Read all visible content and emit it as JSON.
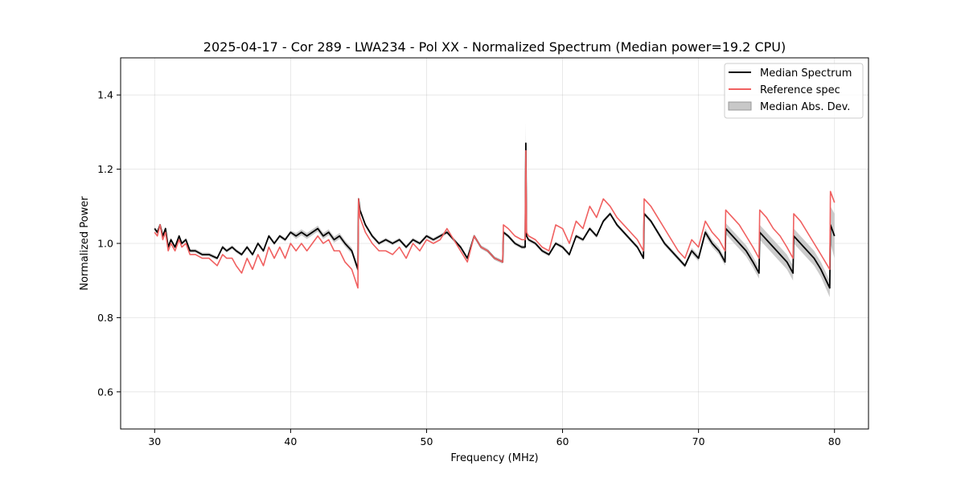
{
  "chart_data": {
    "type": "line",
    "title": "2025-04-17 - Cor 289 - LWA234 - Pol XX - Normalized Spectrum (Median power=19.2 CPU)",
    "xlabel": "Frequency (MHz)",
    "ylabel": "Normalized Power",
    "xlim": [
      27.5,
      82.5
    ],
    "ylim": [
      0.5,
      1.5
    ],
    "xticks": [
      30,
      40,
      50,
      60,
      70,
      80
    ],
    "yticks": [
      0.6,
      0.8,
      1.0,
      1.2,
      1.4
    ],
    "xtick_labels": [
      "30",
      "40",
      "50",
      "60",
      "70",
      "80"
    ],
    "ytick_labels": [
      "0.6",
      "0.8",
      "1.0",
      "1.2",
      "1.4"
    ],
    "grid": true,
    "legend_position": "top-right",
    "legend": {
      "median": "Median Spectrum",
      "reference": "Reference spec",
      "mad": "Median Abs. Dev."
    },
    "colors": {
      "median": "#000000",
      "reference": "#f06060",
      "mad": "#c8c8c8"
    },
    "series": [
      {
        "name": "Median Spectrum",
        "x": [
          30.0,
          30.2,
          30.4,
          30.6,
          30.8,
          31.0,
          31.2,
          31.5,
          31.8,
          32.0,
          32.3,
          32.6,
          33.0,
          33.5,
          34.0,
          34.6,
          35.0,
          35.3,
          35.7,
          36.0,
          36.4,
          36.8,
          37.2,
          37.6,
          38.0,
          38.4,
          38.8,
          39.2,
          39.6,
          40.0,
          40.4,
          40.8,
          41.2,
          41.6,
          42.0,
          42.4,
          42.8,
          43.2,
          43.6,
          44.0,
          44.5,
          44.95,
          45.0,
          45.1,
          45.5,
          46.0,
          46.5,
          47.0,
          47.5,
          48.0,
          48.5,
          49.0,
          49.5,
          50.0,
          50.5,
          51.0,
          51.5,
          52.0,
          52.5,
          53.0,
          53.5,
          54.0,
          54.5,
          55.0,
          55.6,
          55.65,
          56.0,
          56.5,
          57.0,
          57.25,
          57.3,
          57.35,
          57.5,
          58.0,
          58.5,
          59.0,
          59.5,
          60.0,
          60.5,
          61.0,
          61.5,
          62.0,
          62.5,
          63.0,
          63.5,
          64.0,
          64.5,
          65.0,
          65.5,
          65.95,
          66.0,
          66.5,
          67.0,
          67.5,
          68.0,
          68.5,
          69.0,
          69.5,
          70.0,
          70.5,
          71.0,
          71.5,
          71.95,
          72.0,
          72.5,
          73.0,
          73.5,
          74.0,
          74.45,
          74.5,
          75.0,
          75.5,
          76.0,
          76.5,
          76.95,
          77.0,
          77.5,
          78.0,
          78.5,
          79.0,
          79.65,
          79.7,
          80.0
        ],
        "y": [
          1.04,
          1.03,
          1.05,
          1.02,
          1.04,
          0.99,
          1.01,
          0.99,
          1.02,
          1.0,
          1.01,
          0.98,
          0.98,
          0.97,
          0.97,
          0.96,
          0.99,
          0.98,
          0.99,
          0.98,
          0.97,
          0.99,
          0.97,
          1.0,
          0.98,
          1.02,
          1.0,
          1.02,
          1.01,
          1.03,
          1.02,
          1.03,
          1.02,
          1.03,
          1.04,
          1.02,
          1.03,
          1.01,
          1.02,
          1.0,
          0.98,
          0.93,
          1.12,
          1.09,
          1.05,
          1.02,
          1.0,
          1.01,
          1.0,
          1.01,
          0.99,
          1.01,
          1.0,
          1.02,
          1.01,
          1.02,
          1.03,
          1.01,
          0.99,
          0.96,
          1.02,
          0.99,
          0.98,
          0.96,
          0.95,
          1.03,
          1.02,
          1.0,
          0.99,
          0.99,
          1.27,
          1.02,
          1.01,
          1.0,
          0.98,
          0.97,
          1.0,
          0.99,
          0.97,
          1.02,
          1.01,
          1.04,
          1.02,
          1.06,
          1.08,
          1.05,
          1.03,
          1.01,
          0.99,
          0.96,
          1.08,
          1.06,
          1.03,
          1.0,
          0.98,
          0.96,
          0.94,
          0.98,
          0.96,
          1.03,
          1.0,
          0.98,
          0.95,
          1.04,
          1.02,
          1.0,
          0.98,
          0.95,
          0.92,
          1.03,
          1.01,
          0.99,
          0.97,
          0.95,
          0.92,
          1.02,
          1.0,
          0.98,
          0.96,
          0.93,
          0.88,
          1.05,
          1.02
        ]
      },
      {
        "name": "Reference spec",
        "x": [
          30.0,
          30.2,
          30.4,
          30.6,
          30.8,
          31.0,
          31.2,
          31.5,
          31.8,
          32.0,
          32.3,
          32.6,
          33.0,
          33.5,
          34.0,
          34.6,
          35.0,
          35.3,
          35.7,
          36.0,
          36.4,
          36.8,
          37.2,
          37.6,
          38.0,
          38.4,
          38.8,
          39.2,
          39.6,
          40.0,
          40.4,
          40.8,
          41.2,
          41.6,
          42.0,
          42.4,
          42.8,
          43.2,
          43.6,
          44.0,
          44.5,
          44.95,
          45.0,
          45.1,
          45.5,
          46.0,
          46.5,
          47.0,
          47.5,
          48.0,
          48.5,
          49.0,
          49.5,
          50.0,
          50.5,
          51.0,
          51.5,
          52.0,
          52.5,
          53.0,
          53.5,
          54.0,
          54.5,
          55.0,
          55.6,
          55.65,
          56.0,
          56.5,
          57.0,
          57.25,
          57.3,
          57.35,
          57.5,
          58.0,
          58.5,
          59.0,
          59.5,
          60.0,
          60.5,
          61.0,
          61.5,
          62.0,
          62.5,
          63.0,
          63.5,
          64.0,
          64.5,
          65.0,
          65.5,
          65.95,
          66.0,
          66.5,
          67.0,
          67.5,
          68.0,
          68.5,
          69.0,
          69.5,
          70.0,
          70.5,
          71.0,
          71.5,
          71.95,
          72.0,
          72.5,
          73.0,
          73.5,
          74.0,
          74.45,
          74.5,
          75.0,
          75.5,
          76.0,
          76.5,
          76.95,
          77.0,
          77.5,
          78.0,
          78.5,
          79.0,
          79.65,
          79.7,
          80.0
        ],
        "y": [
          1.03,
          1.02,
          1.05,
          1.01,
          1.03,
          0.98,
          1.0,
          0.98,
          1.01,
          0.99,
          1.0,
          0.97,
          0.97,
          0.96,
          0.96,
          0.94,
          0.97,
          0.96,
          0.96,
          0.94,
          0.92,
          0.96,
          0.93,
          0.97,
          0.94,
          0.99,
          0.96,
          0.99,
          0.96,
          1.0,
          0.98,
          1.0,
          0.98,
          1.0,
          1.02,
          1.0,
          1.01,
          0.98,
          0.98,
          0.95,
          0.93,
          0.88,
          1.12,
          1.07,
          1.03,
          1.0,
          0.98,
          0.98,
          0.97,
          0.99,
          0.96,
          1.0,
          0.98,
          1.01,
          1.0,
          1.01,
          1.04,
          1.01,
          0.98,
          0.95,
          1.02,
          0.99,
          0.98,
          0.96,
          0.95,
          1.05,
          1.04,
          1.02,
          1.01,
          1.01,
          1.25,
          1.03,
          1.02,
          1.01,
          0.99,
          0.98,
          1.05,
          1.04,
          1.0,
          1.06,
          1.04,
          1.1,
          1.07,
          1.12,
          1.1,
          1.07,
          1.05,
          1.03,
          1.01,
          0.98,
          1.12,
          1.1,
          1.07,
          1.04,
          1.01,
          0.98,
          0.96,
          1.01,
          0.99,
          1.06,
          1.03,
          1.01,
          0.98,
          1.09,
          1.07,
          1.05,
          1.02,
          0.99,
          0.96,
          1.09,
          1.07,
          1.04,
          1.02,
          0.99,
          0.96,
          1.08,
          1.06,
          1.03,
          1.0,
          0.97,
          0.93,
          1.14,
          1.11
        ]
      },
      {
        "name": "Median Abs. Dev.",
        "x": [
          30.0,
          30.2,
          30.4,
          30.6,
          30.8,
          31.0,
          31.2,
          31.5,
          31.8,
          32.0,
          32.3,
          32.6,
          33.0,
          33.5,
          34.0,
          34.6,
          35.0,
          35.3,
          35.7,
          36.0,
          36.4,
          36.8,
          37.2,
          37.6,
          38.0,
          38.4,
          38.8,
          39.2,
          39.6,
          40.0,
          40.4,
          40.8,
          41.2,
          41.6,
          42.0,
          42.4,
          42.8,
          43.2,
          43.6,
          44.0,
          44.5,
          44.95,
          45.0,
          45.1,
          45.5,
          46.0,
          46.5,
          47.0,
          47.5,
          48.0,
          48.5,
          49.0,
          49.5,
          50.0,
          50.5,
          51.0,
          51.5,
          52.0,
          52.5,
          53.0,
          53.5,
          54.0,
          54.5,
          55.0,
          55.6,
          55.65,
          56.0,
          56.5,
          57.0,
          57.25,
          57.3,
          57.35,
          57.5,
          58.0,
          58.5,
          59.0,
          59.5,
          60.0,
          60.5,
          61.0,
          61.5,
          62.0,
          62.5,
          63.0,
          63.5,
          64.0,
          64.5,
          65.0,
          65.5,
          65.95,
          66.0,
          66.5,
          67.0,
          67.5,
          68.0,
          68.5,
          69.0,
          69.5,
          70.0,
          70.5,
          71.0,
          71.5,
          71.95,
          72.0,
          72.5,
          73.0,
          73.5,
          74.0,
          74.45,
          74.5,
          75.0,
          75.5,
          76.0,
          76.5,
          76.95,
          77.0,
          77.5,
          78.0,
          78.5,
          79.0,
          79.65,
          79.7,
          80.0
        ],
        "upper": [
          1.045,
          1.035,
          1.055,
          1.025,
          1.045,
          0.995,
          1.015,
          0.995,
          1.025,
          1.005,
          1.015,
          0.985,
          0.985,
          0.975,
          0.975,
          0.965,
          0.995,
          0.985,
          0.995,
          0.985,
          0.975,
          0.995,
          0.975,
          1.005,
          0.985,
          1.025,
          1.005,
          1.025,
          1.015,
          1.035,
          1.028,
          1.038,
          1.028,
          1.038,
          1.048,
          1.028,
          1.038,
          1.018,
          1.028,
          1.008,
          0.988,
          0.94,
          1.125,
          1.095,
          1.055,
          1.025,
          1.005,
          1.015,
          1.005,
          1.015,
          0.995,
          1.015,
          1.005,
          1.025,
          1.015,
          1.025,
          1.035,
          1.015,
          0.995,
          0.965,
          1.025,
          0.995,
          0.985,
          0.965,
          0.955,
          1.035,
          1.025,
          1.005,
          0.995,
          0.995,
          1.325,
          1.025,
          1.015,
          1.005,
          0.985,
          0.975,
          1.005,
          0.995,
          0.975,
          1.025,
          1.015,
          1.045,
          1.025,
          1.065,
          1.085,
          1.055,
          1.035,
          1.015,
          0.995,
          0.965,
          1.085,
          1.065,
          1.036,
          1.006,
          0.986,
          0.966,
          0.946,
          0.988,
          0.968,
          1.04,
          1.01,
          0.99,
          0.96,
          1.055,
          1.035,
          1.015,
          0.995,
          0.965,
          0.935,
          1.05,
          1.03,
          1.01,
          0.99,
          0.97,
          0.94,
          1.04,
          1.02,
          1.0,
          0.98,
          0.95,
          0.9,
          1.1,
          1.08
        ],
        "lower": [
          1.035,
          1.025,
          1.045,
          1.015,
          1.035,
          0.985,
          1.005,
          0.985,
          1.015,
          0.995,
          1.005,
          0.975,
          0.975,
          0.965,
          0.965,
          0.955,
          0.985,
          0.975,
          0.985,
          0.975,
          0.965,
          0.985,
          0.965,
          0.995,
          0.975,
          1.015,
          0.995,
          1.015,
          1.005,
          1.025,
          1.012,
          1.022,
          1.012,
          1.022,
          1.032,
          1.012,
          1.022,
          1.002,
          1.012,
          0.992,
          0.972,
          0.92,
          1.115,
          1.085,
          1.045,
          1.015,
          0.995,
          1.005,
          0.995,
          1.005,
          0.985,
          1.005,
          0.995,
          1.015,
          1.005,
          1.015,
          1.025,
          1.005,
          0.985,
          0.955,
          1.015,
          0.985,
          0.975,
          0.955,
          0.945,
          1.025,
          1.015,
          0.995,
          0.985,
          0.985,
          1.215,
          1.015,
          1.005,
          0.995,
          0.975,
          0.965,
          0.995,
          0.985,
          0.965,
          1.015,
          1.005,
          1.035,
          1.015,
          1.055,
          1.075,
          1.045,
          1.025,
          1.005,
          0.985,
          0.955,
          1.075,
          1.055,
          1.024,
          0.994,
          0.974,
          0.954,
          0.934,
          0.972,
          0.952,
          1.02,
          0.99,
          0.97,
          0.94,
          1.025,
          1.005,
          0.985,
          0.965,
          0.935,
          0.905,
          1.01,
          0.99,
          0.97,
          0.95,
          0.93,
          0.9,
          1.0,
          0.98,
          0.96,
          0.94,
          0.91,
          0.855,
          1.0,
          0.96
        ]
      }
    ]
  }
}
